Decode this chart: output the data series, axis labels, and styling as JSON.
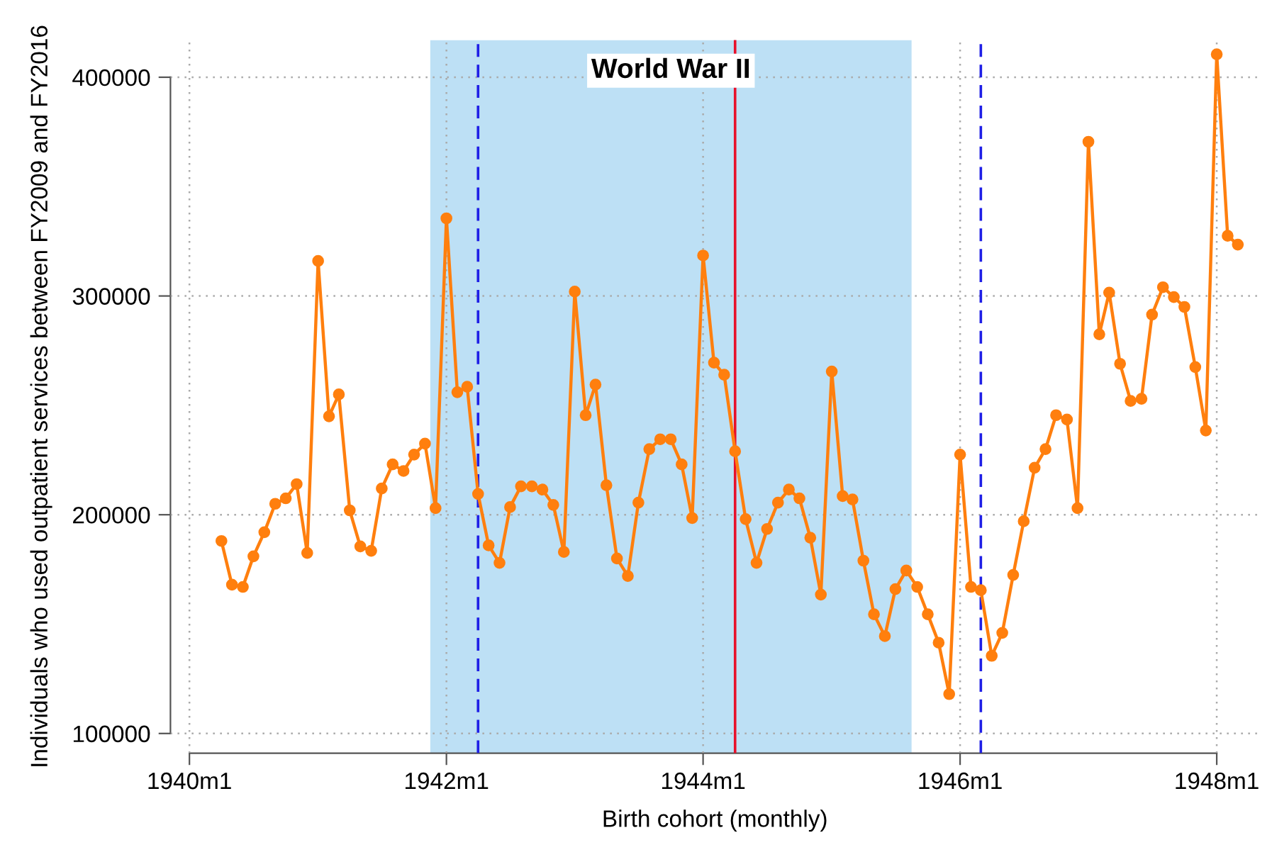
{
  "chart_data": {
    "type": "line",
    "xlabel": "Birth cohort (monthly)",
    "ylabel": "Individuals who used outpatient services between FY2009 and FY2016",
    "x": [
      "1940-04",
      "1940-05",
      "1940-06",
      "1940-07",
      "1940-08",
      "1940-09",
      "1940-10",
      "1940-11",
      "1940-12",
      "1941-01",
      "1941-02",
      "1941-03",
      "1941-04",
      "1941-05",
      "1941-06",
      "1941-07",
      "1941-08",
      "1941-09",
      "1941-10",
      "1941-11",
      "1941-12",
      "1942-01",
      "1942-02",
      "1942-03",
      "1942-04",
      "1942-05",
      "1942-06",
      "1942-07",
      "1942-08",
      "1942-09",
      "1942-10",
      "1942-11",
      "1942-12",
      "1943-01",
      "1943-02",
      "1943-03",
      "1943-04",
      "1943-05",
      "1943-06",
      "1943-07",
      "1943-08",
      "1943-09",
      "1943-10",
      "1943-11",
      "1943-12",
      "1944-01",
      "1944-02",
      "1944-03",
      "1944-04",
      "1944-05",
      "1944-06",
      "1944-07",
      "1944-08",
      "1944-09",
      "1944-10",
      "1944-11",
      "1944-12",
      "1945-01",
      "1945-02",
      "1945-03",
      "1945-04",
      "1945-05",
      "1945-06",
      "1945-07",
      "1945-08",
      "1945-09",
      "1945-10",
      "1945-11",
      "1945-12",
      "1946-01",
      "1946-02",
      "1946-03",
      "1946-04",
      "1946-05",
      "1946-06",
      "1946-07",
      "1946-08",
      "1946-09",
      "1946-10",
      "1946-11",
      "1946-12",
      "1947-01",
      "1947-02",
      "1947-03",
      "1947-04",
      "1947-05",
      "1947-06",
      "1947-07",
      "1947-08",
      "1947-09",
      "1947-10",
      "1947-11",
      "1947-12",
      "1948-01",
      "1948-02",
      "1948-03"
    ],
    "series": [
      {
        "color": "#ff7f0e",
        "values": [
          188000,
          168000,
          167000,
          181000,
          192000,
          205000,
          207500,
          214000,
          182500,
          316000,
          245000,
          255000,
          202000,
          185500,
          183500,
          212000,
          223000,
          220000,
          227500,
          232500,
          203000,
          335500,
          256000,
          258500,
          209500,
          186000,
          178000,
          203500,
          213000,
          213000,
          211500,
          204500,
          183000,
          302000,
          245500,
          259500,
          213500,
          180000,
          172000,
          205500,
          230000,
          234500,
          234500,
          223000,
          198500,
          318500,
          269500,
          264000,
          229000,
          198000,
          178000,
          193500,
          205500,
          211500,
          207500,
          189500,
          163500,
          265500,
          208500,
          207000,
          179000,
          154500,
          144500,
          166000,
          174500,
          167000,
          154500,
          141500,
          118000,
          227500,
          167000,
          165500,
          135500,
          146000,
          172500,
          197000,
          221500,
          230000,
          245500,
          243500,
          203000,
          370500,
          282500,
          301500,
          269000,
          252000,
          253000,
          291500,
          304000,
          299500,
          295000,
          267500,
          238500,
          410500,
          327500,
          323500
        ]
      }
    ],
    "xlim": [
      "1939-11-08",
      "1948-05-01"
    ],
    "xticks": [
      {
        "value": "1940-01",
        "label": "1940m1"
      },
      {
        "value": "1942-01",
        "label": "1942m1"
      },
      {
        "value": "1944-01",
        "label": "1944m1"
      },
      {
        "value": "1946-01",
        "label": "1946m1"
      },
      {
        "value": "1948-01",
        "label": "1948m1"
      }
    ],
    "ylim": [
      91000,
      417000
    ],
    "yticks": [
      100000,
      200000,
      300000,
      400000
    ],
    "grid": true,
    "marker": "circle",
    "line_style": "solid",
    "bands": [
      {
        "axis": "x",
        "from": "1941-11-16",
        "to": "1945-08-16",
        "label": "World War II",
        "color": "#bde0f5"
      }
    ],
    "ref_lines": [
      {
        "axis": "x",
        "value": "1942-04",
        "color": "#1f1fe6",
        "line_style": "dashed"
      },
      {
        "axis": "x",
        "value": "1944-04",
        "color": "#e8102a",
        "line_style": "solid"
      },
      {
        "axis": "x",
        "value": "1946-03",
        "color": "#1f1fe6",
        "line_style": "dashed"
      }
    ]
  }
}
